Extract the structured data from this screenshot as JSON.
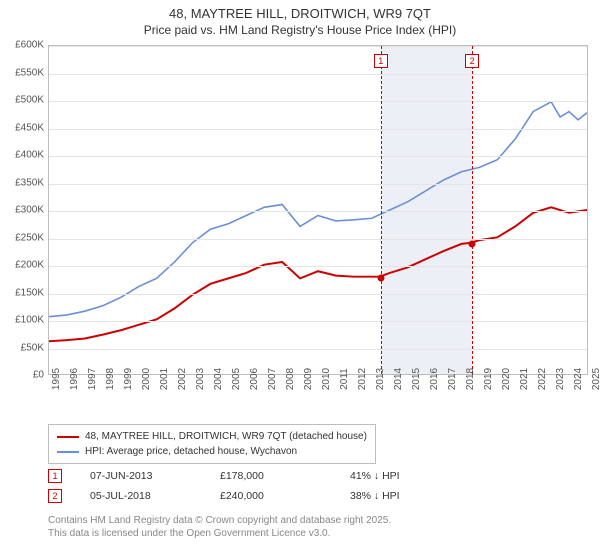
{
  "title": {
    "main": "48, MAYTREE HILL, DROITWICH, WR9 7QT",
    "sub": "Price paid vs. HM Land Registry's House Price Index (HPI)"
  },
  "chart": {
    "type": "line",
    "background_color": "#ffffff",
    "border_color": "#bdbdbd",
    "grid_color": "#e5e5e5",
    "label_color": "#555555",
    "label_fontsize": 10,
    "ylim": [
      0,
      600000
    ],
    "ytick_step": 50000,
    "y_labels": [
      "£0",
      "£50K",
      "£100K",
      "£150K",
      "£200K",
      "£250K",
      "£300K",
      "£350K",
      "£400K",
      "£450K",
      "£500K",
      "£550K",
      "£600K"
    ],
    "xlim": [
      1995,
      2025
    ],
    "x_labels": [
      "1995",
      "1996",
      "1997",
      "1998",
      "1999",
      "2000",
      "2001",
      "2002",
      "2003",
      "2004",
      "2005",
      "2006",
      "2007",
      "2008",
      "2009",
      "2010",
      "2011",
      "2012",
      "2013",
      "2014",
      "2015",
      "2016",
      "2017",
      "2018",
      "2019",
      "2020",
      "2021",
      "2022",
      "2023",
      "2024",
      "2025"
    ],
    "shade": {
      "x_start": 2013.43,
      "x_end": 2018.51,
      "color": "#ecf0f6"
    },
    "markers": [
      {
        "label": "1",
        "x": 2013.43,
        "color": "#cc0000"
      },
      {
        "label": "2",
        "x": 2018.51,
        "color": "#cc0000"
      }
    ],
    "series": [
      {
        "name": "series-property",
        "label": "48, MAYTREE HILL, DROITWICH, WR9 7QT (detached house)",
        "color": "#cc0000",
        "line_width": 2,
        "points": [
          [
            1995,
            60000
          ],
          [
            1996,
            62000
          ],
          [
            1997,
            65000
          ],
          [
            1998,
            72000
          ],
          [
            1999,
            80000
          ],
          [
            2000,
            90000
          ],
          [
            2001,
            100000
          ],
          [
            2002,
            120000
          ],
          [
            2003,
            145000
          ],
          [
            2004,
            165000
          ],
          [
            2005,
            175000
          ],
          [
            2006,
            185000
          ],
          [
            2007,
            200000
          ],
          [
            2008,
            205000
          ],
          [
            2009,
            175000
          ],
          [
            2010,
            188000
          ],
          [
            2011,
            180000
          ],
          [
            2012,
            178000
          ],
          [
            2013,
            178000
          ],
          [
            2013.43,
            178000
          ],
          [
            2014,
            185000
          ],
          [
            2015,
            195000
          ],
          [
            2016,
            210000
          ],
          [
            2017,
            225000
          ],
          [
            2018,
            238000
          ],
          [
            2018.51,
            240000
          ],
          [
            2019,
            245000
          ],
          [
            2020,
            250000
          ],
          [
            2021,
            270000
          ],
          [
            2022,
            295000
          ],
          [
            2023,
            305000
          ],
          [
            2024,
            295000
          ],
          [
            2025,
            300000
          ]
        ],
        "transaction_dots": [
          {
            "x": 2013.43,
            "y": 178000
          },
          {
            "x": 2018.51,
            "y": 240000
          }
        ]
      },
      {
        "name": "series-hpi",
        "label": "HPI: Average price, detached house, Wychavon",
        "color": "#6a8fd8",
        "line_width": 1.6,
        "points": [
          [
            1995,
            105000
          ],
          [
            1996,
            108000
          ],
          [
            1997,
            115000
          ],
          [
            1998,
            125000
          ],
          [
            1999,
            140000
          ],
          [
            2000,
            160000
          ],
          [
            2001,
            175000
          ],
          [
            2002,
            205000
          ],
          [
            2003,
            240000
          ],
          [
            2004,
            265000
          ],
          [
            2005,
            275000
          ],
          [
            2006,
            290000
          ],
          [
            2007,
            305000
          ],
          [
            2008,
            310000
          ],
          [
            2009,
            270000
          ],
          [
            2010,
            290000
          ],
          [
            2011,
            280000
          ],
          [
            2012,
            282000
          ],
          [
            2013,
            285000
          ],
          [
            2014,
            300000
          ],
          [
            2015,
            315000
          ],
          [
            2016,
            335000
          ],
          [
            2017,
            355000
          ],
          [
            2018,
            370000
          ],
          [
            2019,
            378000
          ],
          [
            2020,
            392000
          ],
          [
            2021,
            430000
          ],
          [
            2022,
            480000
          ],
          [
            2023,
            498000
          ],
          [
            2023.5,
            470000
          ],
          [
            2024,
            480000
          ],
          [
            2024.5,
            465000
          ],
          [
            2025,
            478000
          ]
        ]
      }
    ]
  },
  "legend": {
    "items": [
      {
        "color": "#cc0000",
        "label": "48, MAYTREE HILL, DROITWICH, WR9 7QT (detached house)"
      },
      {
        "color": "#6a8fd8",
        "label": "HPI: Average price, detached house, Wychavon"
      }
    ]
  },
  "transactions": [
    {
      "badge": "1",
      "date": "07-JUN-2013",
      "price": "£178,000",
      "pct": "41% ↓ HPI"
    },
    {
      "badge": "2",
      "date": "05-JUL-2018",
      "price": "£240,000",
      "pct": "38% ↓ HPI"
    }
  ],
  "attribution": {
    "line1": "Contains HM Land Registry data © Crown copyright and database right 2025.",
    "line2": "This data is licensed under the Open Government Licence v3.0."
  }
}
